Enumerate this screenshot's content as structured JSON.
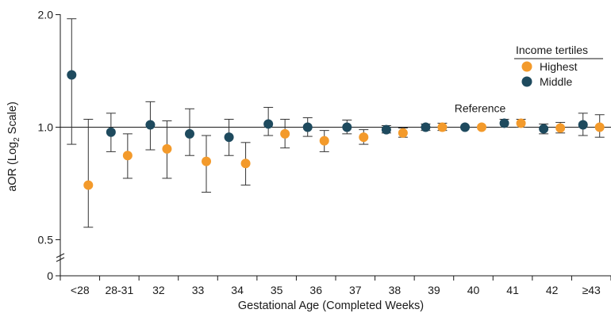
{
  "chart_data": {
    "type": "scatter",
    "xlabel": "Gestational Age (Completed Weeks)",
    "ylabel_parts": [
      "aOR (Log",
      "2",
      " Scale)"
    ],
    "y_scale": "log2",
    "yticks": [
      {
        "value": 2.0,
        "label": "2.0"
      },
      {
        "value": 1.0,
        "label": "1.0"
      },
      {
        "value": 0.5,
        "label": "0.5"
      }
    ],
    "y_zero_label": "0",
    "categories": [
      "<28",
      "28-31",
      "32",
      "33",
      "34",
      "35",
      "36",
      "37",
      "38",
      "39",
      "40",
      "41",
      "42",
      "≥43"
    ],
    "reference_line": {
      "value": 1.0,
      "label": "Reference"
    },
    "legend": {
      "title": "Income tertiles"
    },
    "series": [
      {
        "name": "Highest",
        "color": "#f39a2b",
        "points": [
          {
            "category": "<28",
            "value": 0.7,
            "lower": 0.54,
            "upper": 1.05
          },
          {
            "category": "28-31",
            "value": 0.84,
            "lower": 0.73,
            "upper": 0.96
          },
          {
            "category": "32",
            "value": 0.875,
            "lower": 0.73,
            "upper": 1.04
          },
          {
            "category": "33",
            "value": 0.81,
            "lower": 0.67,
            "upper": 0.95
          },
          {
            "category": "34",
            "value": 0.8,
            "lower": 0.7,
            "upper": 0.91
          },
          {
            "category": "35",
            "value": 0.96,
            "lower": 0.88,
            "upper": 1.05
          },
          {
            "category": "36",
            "value": 0.92,
            "lower": 0.86,
            "upper": 0.98
          },
          {
            "category": "37",
            "value": 0.94,
            "lower": 0.9,
            "upper": 0.985
          },
          {
            "category": "38",
            "value": 0.965,
            "lower": 0.94,
            "upper": 0.995
          },
          {
            "category": "39",
            "value": 1.0,
            "lower": 0.98,
            "upper": 1.025
          },
          {
            "category": "40",
            "value": 1.0
          },
          {
            "category": "41",
            "value": 1.025,
            "lower": 1.0,
            "upper": 1.05
          },
          {
            "category": "42",
            "value": 0.995,
            "lower": 0.965,
            "upper": 1.03
          },
          {
            "category": "≥43",
            "value": 1.0,
            "lower": 0.94,
            "upper": 1.08
          }
        ]
      },
      {
        "name": "Middle",
        "color": "#1e4a5e",
        "points": [
          {
            "category": "<28",
            "value": 1.38,
            "lower": 0.9,
            "upper": 1.95
          },
          {
            "category": "28-31",
            "value": 0.97,
            "lower": 0.86,
            "upper": 1.09
          },
          {
            "category": "32",
            "value": 1.015,
            "lower": 0.87,
            "upper": 1.17
          },
          {
            "category": "33",
            "value": 0.96,
            "lower": 0.84,
            "upper": 1.12
          },
          {
            "category": "34",
            "value": 0.94,
            "lower": 0.84,
            "upper": 1.05
          },
          {
            "category": "35",
            "value": 1.02,
            "lower": 0.95,
            "upper": 1.13
          },
          {
            "category": "36",
            "value": 1.0,
            "lower": 0.945,
            "upper": 1.06
          },
          {
            "category": "37",
            "value": 1.0,
            "lower": 0.96,
            "upper": 1.045
          },
          {
            "category": "38",
            "value": 0.985,
            "lower": 0.965,
            "upper": 1.01
          },
          {
            "category": "39",
            "value": 1.0,
            "lower": 0.98,
            "upper": 1.02
          },
          {
            "category": "40",
            "value": 1.0
          },
          {
            "category": "41",
            "value": 1.025,
            "lower": 1.0,
            "upper": 1.05
          },
          {
            "category": "42",
            "value": 0.99,
            "lower": 0.96,
            "upper": 1.02
          },
          {
            "category": "≥43",
            "value": 1.015,
            "lower": 0.95,
            "upper": 1.09
          }
        ]
      }
    ]
  }
}
